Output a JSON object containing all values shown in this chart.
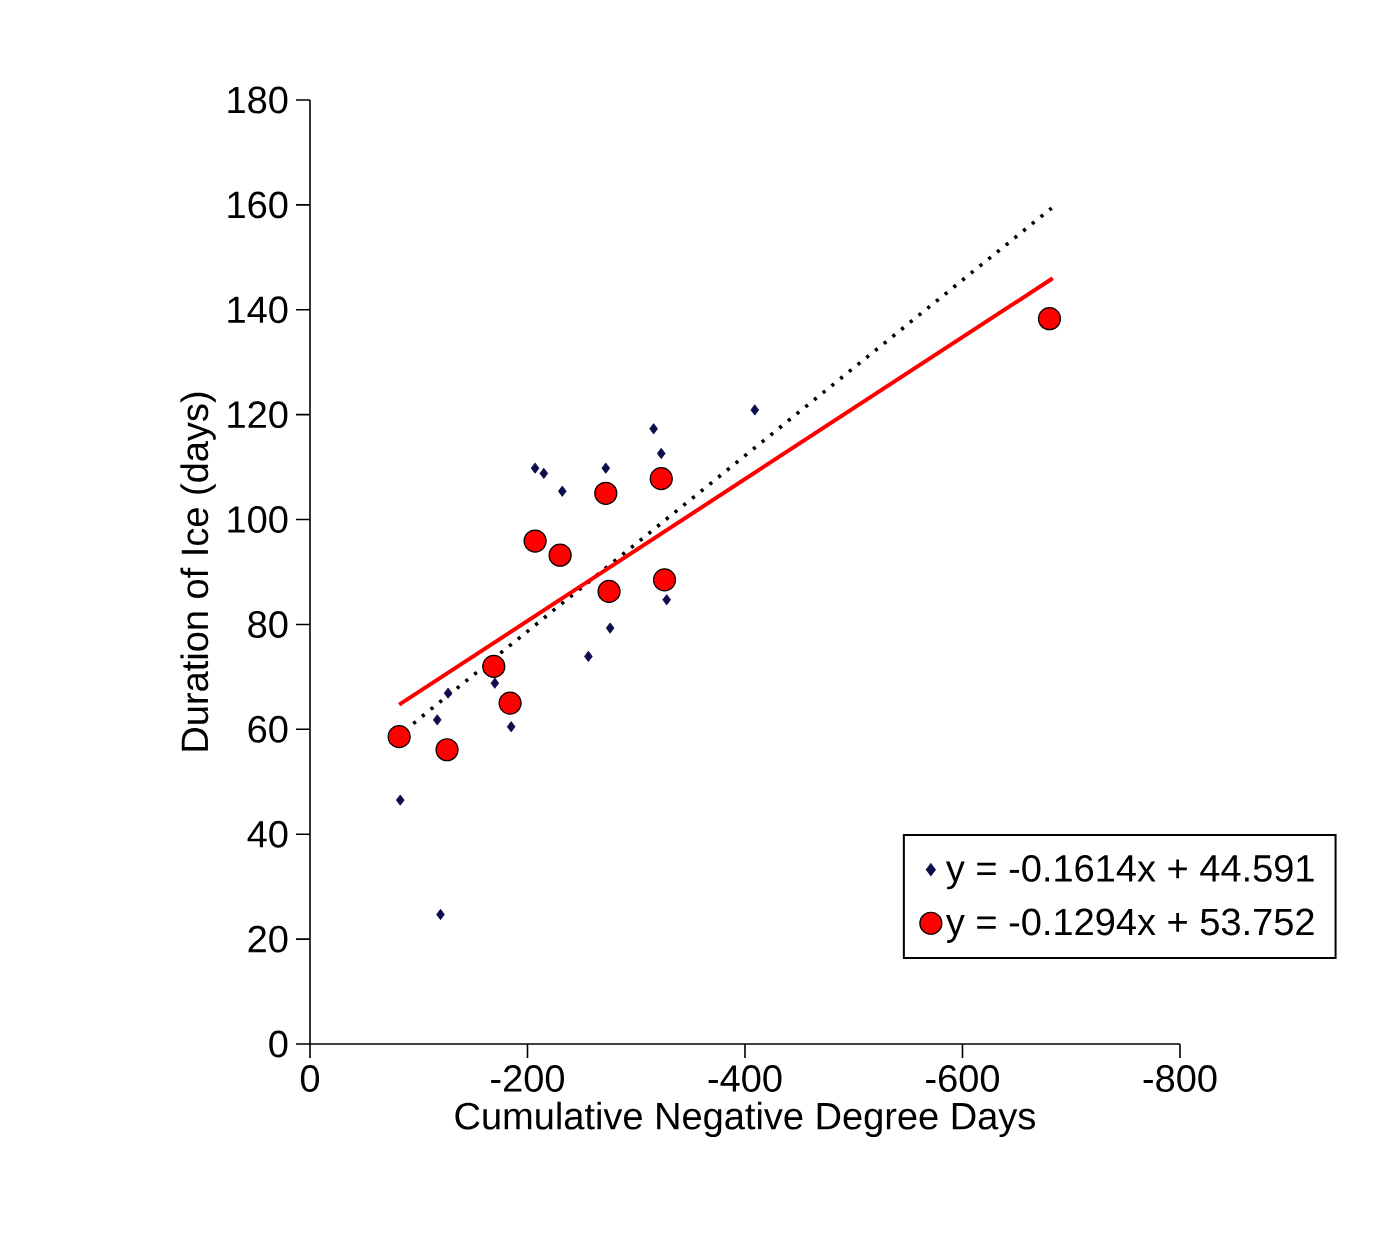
{
  "chart_data": {
    "type": "scatter",
    "xlabel": "Cumulative Negative Degree Days",
    "ylabel": "Duration of Ice (days)",
    "xlim": [
      0,
      -800
    ],
    "xticks": [
      0,
      -200,
      -400,
      -600,
      -800
    ],
    "ylim": [
      0,
      180
    ],
    "yticks": [
      0,
      20,
      40,
      60,
      80,
      100,
      120,
      140,
      160,
      180
    ],
    "grid": false,
    "legend": "bottom right",
    "series": [
      {
        "name": "y = -0.1614x + 44.591",
        "color": "#0d0d4d",
        "marker": "diamond",
        "x": [
          -409,
          -316,
          -323,
          -207,
          -215,
          -272,
          -232,
          -328,
          -276,
          -256,
          -127,
          -117,
          -185,
          -170,
          -83,
          -120
        ],
        "values": [
          120.9,
          117.3,
          112.6,
          109.8,
          108.8,
          109.8,
          105.4,
          84.7,
          79.3,
          73.9,
          66.9,
          61.8,
          60.5,
          68.8,
          46.5,
          24.7
        ]
      },
      {
        "name": "y = -0.1294x + 53.752",
        "color": "#ff0000",
        "marker": "circle",
        "x": [
          -82,
          -126,
          -169,
          -184,
          -207,
          -230,
          -272,
          -323,
          -275,
          -326,
          -680
        ],
        "values": [
          58.6,
          56.1,
          72.0,
          65.0,
          95.9,
          93.2,
          105.0,
          107.8,
          86.3,
          88.5,
          138.3
        ]
      },
      {
        "type": "line",
        "color": "#000000",
        "line_style": "dotted",
        "marker": "none",
        "x": [
          -95,
          -682
        ],
        "values": [
          61.1,
          159.4
        ]
      },
      {
        "type": "line",
        "color": "#ff0000",
        "line_style": "solid",
        "marker": "none",
        "x": [
          -82,
          -683
        ],
        "values": [
          64.7,
          146.0
        ]
      }
    ]
  }
}
